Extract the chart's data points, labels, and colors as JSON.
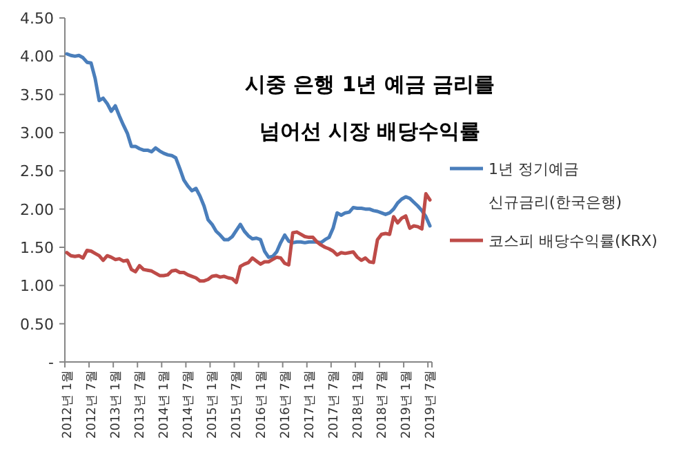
{
  "chart_data": {
    "type": "line",
    "title": "시중 은행 1년 예금 금리를 넘어선 시장 배당수익률",
    "categories": [
      "2012년 1월",
      null,
      null,
      null,
      null,
      null,
      "2012년 7월",
      null,
      null,
      null,
      null,
      null,
      "2013년 1월",
      null,
      null,
      null,
      null,
      null,
      "2013년 7월",
      null,
      null,
      null,
      null,
      null,
      "2014년 1월",
      null,
      null,
      null,
      null,
      null,
      "2014년 7월",
      null,
      null,
      null,
      null,
      null,
      "2015년 1월",
      null,
      null,
      null,
      null,
      null,
      "2015년 7월",
      null,
      null,
      null,
      null,
      null,
      "2016년 1월",
      null,
      null,
      null,
      null,
      null,
      "2016년 7월",
      null,
      null,
      null,
      null,
      null,
      "2017년 1월",
      null,
      null,
      null,
      null,
      null,
      "2017년 7월",
      null,
      null,
      null,
      null,
      null,
      "2018년 1월",
      null,
      null,
      null,
      null,
      null,
      "2018년 7월",
      null,
      null,
      null,
      null,
      null,
      "2019년 1월",
      null,
      null,
      null,
      null,
      null,
      "2019년 7월"
    ],
    "series": [
      {
        "name": "1년 정기예금 신규금리(한국은행)",
        "color": "#4a7ebb",
        "values": [
          4.03,
          4.01,
          4.0,
          4.01,
          3.98,
          3.92,
          3.91,
          3.71,
          3.42,
          3.45,
          3.38,
          3.28,
          3.35,
          3.22,
          3.1,
          2.99,
          2.82,
          2.82,
          2.79,
          2.77,
          2.77,
          2.75,
          2.8,
          2.76,
          2.73,
          2.71,
          2.7,
          2.67,
          2.53,
          2.38,
          2.3,
          2.24,
          2.27,
          2.17,
          2.04,
          1.86,
          1.8,
          1.71,
          1.66,
          1.6,
          1.6,
          1.64,
          1.72,
          1.8,
          1.71,
          1.65,
          1.61,
          1.62,
          1.6,
          1.45,
          1.37,
          1.38,
          1.44,
          1.56,
          1.66,
          1.58,
          1.56,
          1.57,
          1.57,
          1.56,
          1.57,
          1.57,
          1.57,
          1.56,
          1.6,
          1.63,
          1.75,
          1.95,
          1.92,
          1.95,
          1.96,
          2.02,
          2.01,
          2.01,
          2.0,
          2.0,
          1.98,
          1.97,
          1.95,
          1.93,
          1.95,
          2.0,
          2.08,
          2.13,
          2.16,
          2.14,
          2.09,
          2.04,
          1.98,
          1.9,
          1.78
        ]
      },
      {
        "name": "코스피 배당수익률(KRX)",
        "color": "#be4b48",
        "values": [
          1.43,
          1.39,
          1.38,
          1.39,
          1.36,
          1.46,
          1.45,
          1.42,
          1.39,
          1.33,
          1.39,
          1.37,
          1.34,
          1.35,
          1.32,
          1.33,
          1.21,
          1.18,
          1.26,
          1.21,
          1.2,
          1.19,
          1.16,
          1.13,
          1.13,
          1.14,
          1.19,
          1.2,
          1.17,
          1.17,
          1.14,
          1.12,
          1.1,
          1.06,
          1.06,
          1.08,
          1.12,
          1.13,
          1.11,
          1.12,
          1.1,
          1.09,
          1.04,
          1.25,
          1.28,
          1.3,
          1.36,
          1.32,
          1.28,
          1.31,
          1.31,
          1.34,
          1.37,
          1.36,
          1.29,
          1.27,
          1.69,
          1.7,
          1.67,
          1.64,
          1.63,
          1.63,
          1.57,
          1.53,
          1.5,
          1.48,
          1.45,
          1.4,
          1.43,
          1.42,
          1.43,
          1.44,
          1.37,
          1.33,
          1.36,
          1.31,
          1.3,
          1.6,
          1.67,
          1.68,
          1.67,
          1.9,
          1.82,
          1.88,
          1.91,
          1.75,
          1.78,
          1.77,
          1.74,
          2.2,
          2.12
        ]
      }
    ],
    "ylim": [
      0,
      4.5
    ],
    "yticks": [
      {
        "value": 0,
        "label": "-"
      },
      {
        "value": 0.5,
        "label": "0.50"
      },
      {
        "value": 1,
        "label": "1.00"
      },
      {
        "value": 1.5,
        "label": "1.50"
      },
      {
        "value": 2,
        "label": "2.00"
      },
      {
        "value": 2.5,
        "label": "2.50"
      },
      {
        "value": 3,
        "label": "3.00"
      },
      {
        "value": 3.5,
        "label": "3.50"
      },
      {
        "value": 4,
        "label": "4.00"
      },
      {
        "value": 4.5,
        "label": "4.50"
      }
    ],
    "legend": "right",
    "grid": false
  }
}
